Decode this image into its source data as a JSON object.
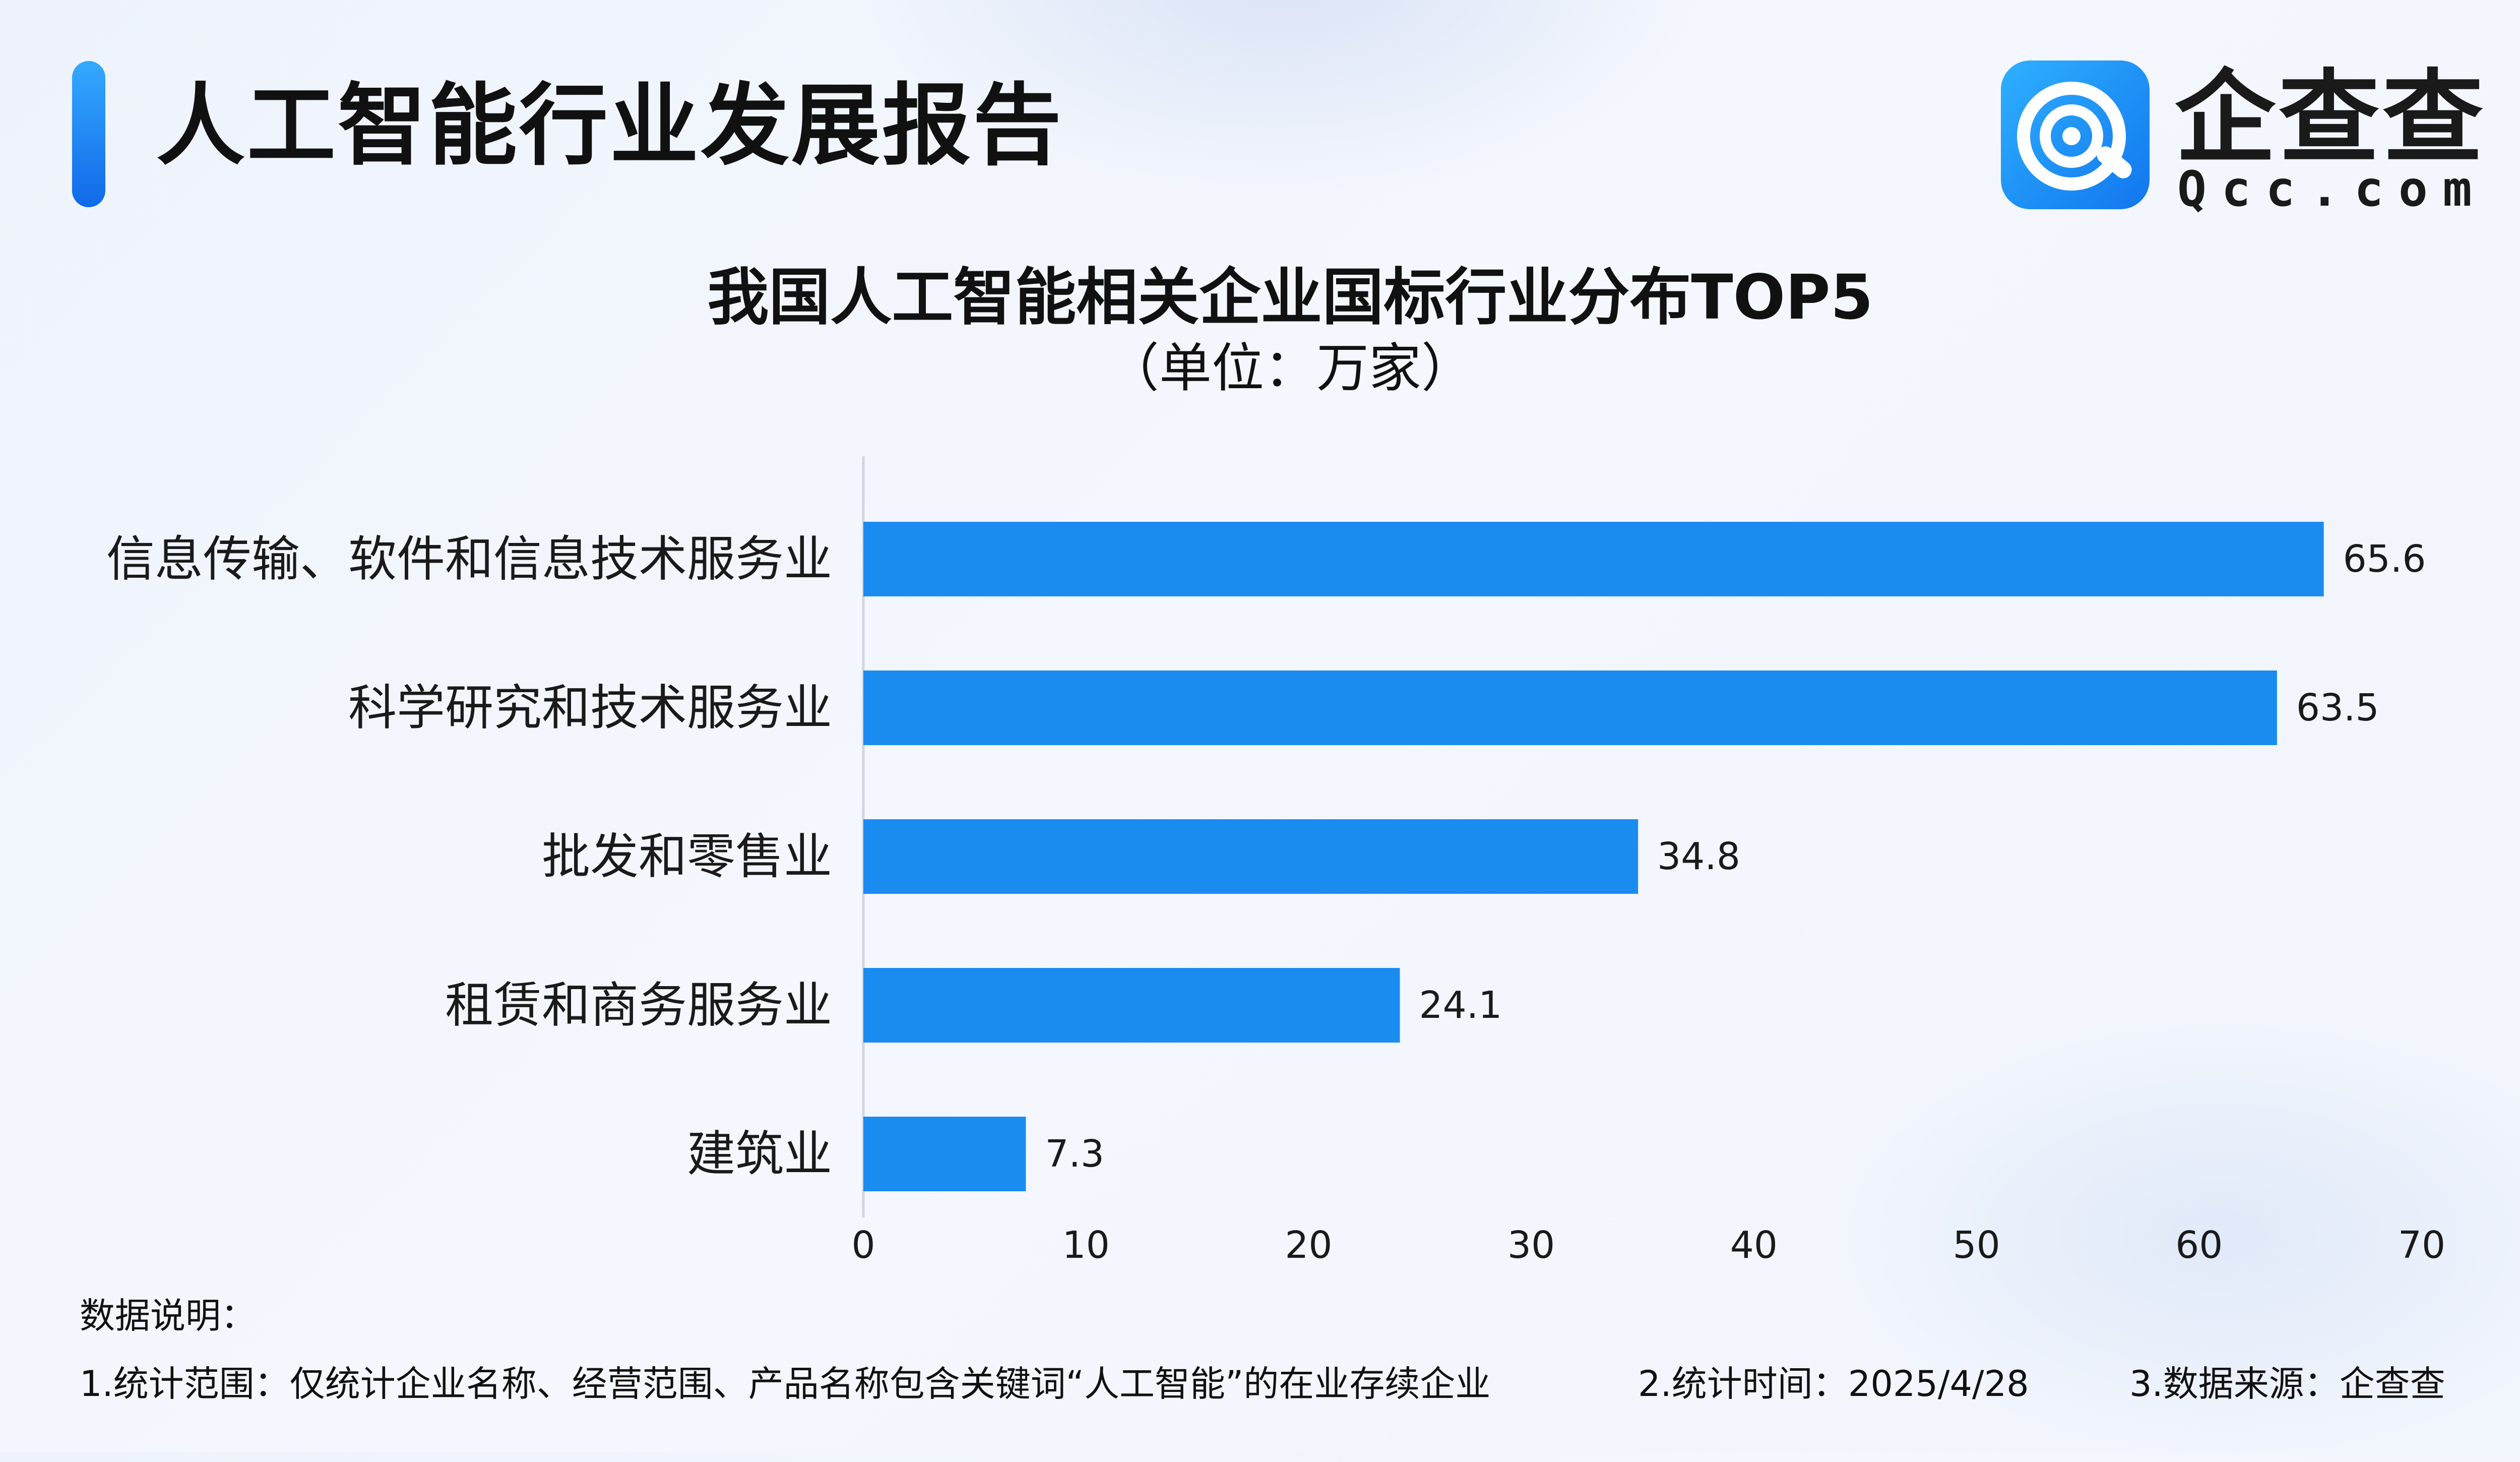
{
  "header": {
    "report_title": "人工智能行业发展报告",
    "logo_text_cn": "企查查",
    "logo_text_en": "Qcc.com",
    "accent_color": "#1a8cf0"
  },
  "chart_data": {
    "type": "bar",
    "orientation": "horizontal",
    "title": "我国人工智能相关企业国标行业分布TOP5",
    "subtitle": "（单位：万家）",
    "categories": [
      "信息传输、软件和信息技术服务业",
      "科学研究和技术服务业",
      "批发和零售业",
      "租赁和商务服务业",
      "建筑业"
    ],
    "values": [
      65.6,
      63.5,
      34.8,
      24.1,
      7.3
    ],
    "value_labels": [
      "65.6",
      "63.5",
      "34.8",
      "24.1",
      "7.3"
    ],
    "xlim": [
      0,
      70
    ],
    "xticks": [
      "0",
      "10",
      "20",
      "30",
      "40",
      "50",
      "60",
      "70"
    ],
    "bar_color": "#1a8cf0",
    "grid": false,
    "legend": "none"
  },
  "notes": {
    "heading": "数据说明：",
    "items": [
      "1.统计范围：仅统计企业名称、经营范围、产品名称包含关键词“人工智能”的在业存续企业",
      "2.统计时间：2025/4/28",
      "3.数据来源：企查查"
    ]
  }
}
